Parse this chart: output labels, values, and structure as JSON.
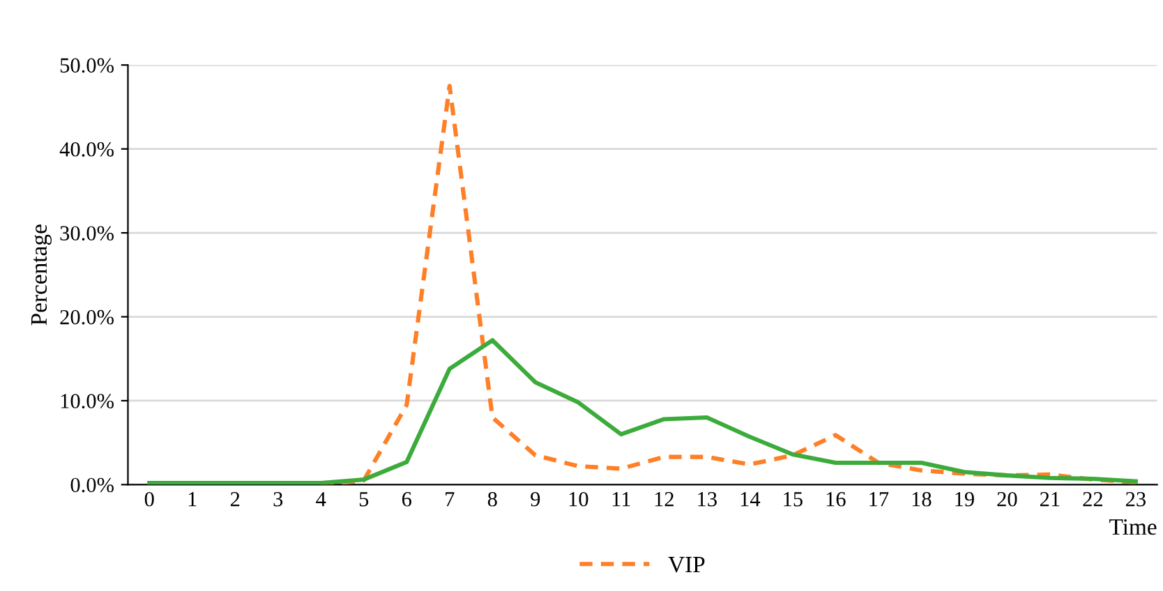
{
  "chart_data": {
    "type": "line",
    "xlabel": "Time",
    "ylabel": "Percentage",
    "categories": [
      "0",
      "1",
      "2",
      "3",
      "4",
      "5",
      "6",
      "7",
      "8",
      "9",
      "10",
      "11",
      "12",
      "13",
      "14",
      "15",
      "16",
      "17",
      "18",
      "19",
      "20",
      "21",
      "22",
      "23"
    ],
    "series": [
      {
        "name": "VIP",
        "color": "#ff7f27",
        "line_style": "dashed",
        "values": [
          null,
          null,
          null,
          null,
          0,
          0.5,
          9.5,
          47.5,
          8.0,
          3.5,
          2.2,
          1.9,
          3.3,
          3.3,
          2.4,
          3.5,
          5.9,
          2.6,
          1.7,
          1.3,
          1.1,
          1.2,
          0.6,
          0.3
        ]
      },
      {
        "color": "#3cab3c",
        "line_style": "solid",
        "values": [
          0.2,
          0.2,
          0.2,
          0.2,
          0.2,
          0.6,
          2.7,
          13.8,
          17.2,
          12.2,
          9.8,
          6.0,
          7.8,
          8.0,
          5.7,
          3.6,
          2.6,
          2.6,
          2.6,
          1.5,
          1.1,
          0.8,
          0.7,
          0.4
        ]
      }
    ],
    "ylim": [
      0,
      50
    ],
    "yticks": [
      {
        "value": 0,
        "label": "0.0%"
      },
      {
        "value": 10,
        "label": "10.0%"
      },
      {
        "value": 20,
        "label": "20.0%"
      },
      {
        "value": 30,
        "label": "30.0%"
      },
      {
        "value": 40,
        "label": "40.0%"
      },
      {
        "value": 50,
        "label": "50.0%"
      }
    ],
    "grid": "y",
    "legend": "bottom",
    "marker": "none"
  }
}
